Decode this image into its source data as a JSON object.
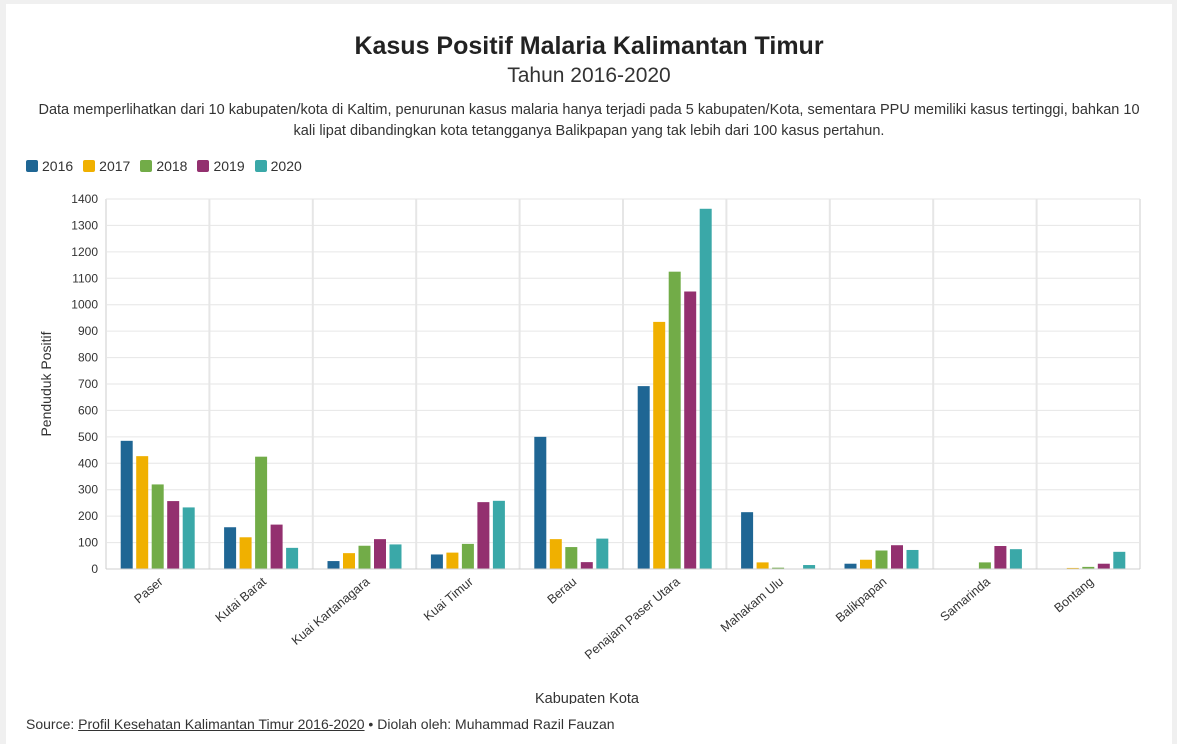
{
  "header": {
    "title": "Kasus Positif Malaria Kalimantan Timur",
    "subtitle": "Tahun 2016-2020",
    "description": "Data memperlihatkan dari 10 kabupaten/kota di Kaltim, penurunan kasus malaria hanya terjadi pada 5 kabupaten/Kota, sementara PPU memiliki kasus tertinggi, bahkan 10 kali lipat dibandingkan kota tetangganya Balikpapan yang tak lebih dari 100 kasus pertahun."
  },
  "footer": {
    "source_prefix": "Source: ",
    "source_link": "Profil Kesehatan Kalimantan Timur 2016-2020",
    "source_suffix": " • Diolah oleh: Muhammad Razil Fauzan"
  },
  "chart_data": {
    "type": "bar",
    "xlabel": "Kabupaten Kota",
    "ylabel": "Penduduk Positif",
    "ylim": [
      0,
      1400
    ],
    "yticks": [
      0,
      100,
      200,
      300,
      400,
      500,
      600,
      700,
      800,
      900,
      1000,
      1100,
      1200,
      1300,
      1400
    ],
    "grid": true,
    "legend_position": "top-left",
    "categories": [
      "Paser",
      "Kutai Barat",
      "Kuai Kartanagara",
      "Kuai Timur",
      "Berau",
      "Penajam Paser Utara",
      "Mahakam Ulu",
      "Balikpapan",
      "Samarinda",
      "Bontang"
    ],
    "series": [
      {
        "name": "2016",
        "color": "#1f6694",
        "values": [
          485,
          158,
          30,
          55,
          500,
          692,
          215,
          20,
          0,
          0
        ]
      },
      {
        "name": "2017",
        "color": "#f0b000",
        "values": [
          427,
          120,
          60,
          62,
          113,
          935,
          25,
          35,
          0,
          4
        ]
      },
      {
        "name": "2018",
        "color": "#72ac48",
        "values": [
          320,
          425,
          88,
          95,
          83,
          1125,
          5,
          70,
          25,
          8
        ]
      },
      {
        "name": "2019",
        "color": "#93306f",
        "values": [
          257,
          168,
          113,
          253,
          26,
          1050,
          0,
          90,
          87,
          20
        ]
      },
      {
        "name": "2020",
        "color": "#3aa8a8",
        "values": [
          233,
          80,
          93,
          258,
          115,
          1363,
          15,
          72,
          75,
          65
        ]
      }
    ]
  }
}
